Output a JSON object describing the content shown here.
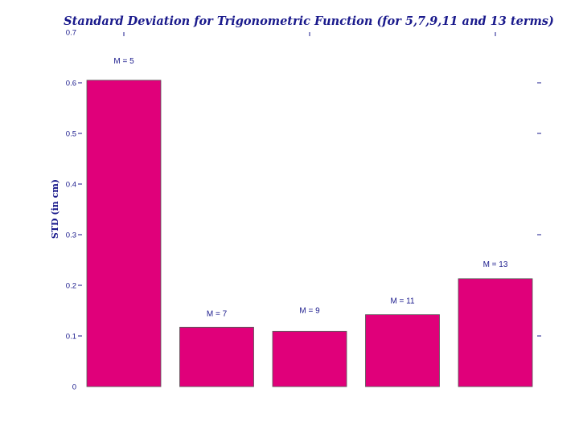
{
  "chart_data": {
    "type": "bar",
    "title": "Standard Deviation for Trigonometric Function (for 5,7,9,11 and 13 terms)",
    "ylabel": "STD (in cm)",
    "xlabel": "",
    "categories": [
      "M = 5",
      "M = 7",
      "M = 9",
      "M = 11",
      "M = 13"
    ],
    "values": [
      0.605,
      0.117,
      0.109,
      0.142,
      0.213
    ],
    "ylim": [
      0,
      0.7
    ],
    "yticks": [
      "0",
      "0.1",
      "0.2",
      "0.3",
      "0.4",
      "0.5",
      "0.6",
      "0.7"
    ],
    "grid": false,
    "bar_color": "#e0007a",
    "text_color": "#1a1a8c"
  }
}
